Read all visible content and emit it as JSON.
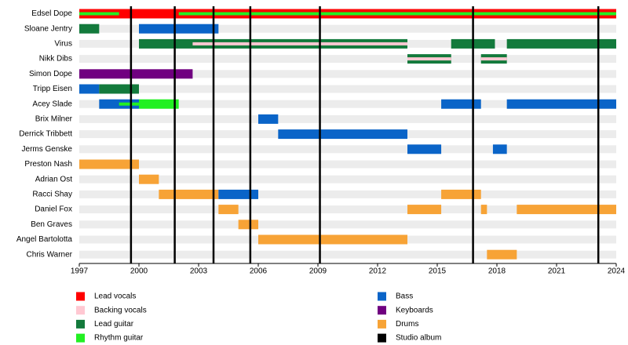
{
  "chart_data": {
    "type": "timeline",
    "xlim": [
      1997,
      2024
    ],
    "xticks": [
      1997,
      2000,
      2003,
      2006,
      2009,
      2012,
      2015,
      2018,
      2021,
      2024
    ],
    "roles": [
      {
        "name": "Lead vocals",
        "color": "#ff0000"
      },
      {
        "name": "Backing vocals",
        "color": "#ffc8d2"
      },
      {
        "name": "Lead guitar",
        "color": "#137a3c"
      },
      {
        "name": "Rhythm guitar",
        "color": "#22f022"
      },
      {
        "name": "Bass",
        "color": "#0a64c8"
      },
      {
        "name": "Keyboards",
        "color": "#700080"
      },
      {
        "name": "Drums",
        "color": "#f7a336"
      }
    ],
    "album_label": "Studio album",
    "album_color": "#000000",
    "studio_albums": [
      1999.6,
      2001.8,
      2003.75,
      2005.6,
      2009.1,
      2016.8,
      2023.1
    ],
    "members": [
      {
        "name": "Edsel Dope",
        "periods": [
          {
            "role": "Lead vocals",
            "start": 1997,
            "end": 2024
          },
          {
            "role": "Rhythm guitar",
            "start": 1997,
            "end": 1999
          },
          {
            "role": "Rhythm guitar",
            "start": 2002,
            "end": 2024
          }
        ]
      },
      {
        "name": "Sloane Jentry",
        "periods": [
          {
            "role": "Lead guitar",
            "start": 1997,
            "end": 1998
          },
          {
            "role": "Bass",
            "start": 2000,
            "end": 2004
          }
        ]
      },
      {
        "name": "Virus",
        "periods": [
          {
            "role": "Lead guitar",
            "start": 2000,
            "end": 2013.5
          },
          {
            "role": "Backing vocals",
            "start": 2002.7,
            "end": 2013.5
          },
          {
            "role": "Lead guitar",
            "start": 2015.7,
            "end": 2017.9
          },
          {
            "role": "Lead guitar",
            "start": 2018.5,
            "end": 2024
          }
        ]
      },
      {
        "name": "Nikk Dibs",
        "periods": [
          {
            "role": "Lead guitar",
            "start": 2013.5,
            "end": 2015.7
          },
          {
            "role": "Backing vocals",
            "start": 2013.5,
            "end": 2015.7
          },
          {
            "role": "Lead guitar",
            "start": 2017.2,
            "end": 2018.5
          },
          {
            "role": "Backing vocals",
            "start": 2017.2,
            "end": 2018.5
          }
        ]
      },
      {
        "name": "Simon Dope",
        "periods": [
          {
            "role": "Keyboards",
            "start": 1997,
            "end": 2002.7
          }
        ]
      },
      {
        "name": "Tripp Eisen",
        "periods": [
          {
            "role": "Bass",
            "start": 1997,
            "end": 1998
          },
          {
            "role": "Lead guitar",
            "start": 1998,
            "end": 2000
          }
        ]
      },
      {
        "name": "Acey Slade",
        "periods": [
          {
            "role": "Bass",
            "start": 1998,
            "end": 2000
          },
          {
            "role": "Rhythm guitar",
            "start": 1999,
            "end": 2000
          },
          {
            "role": "Rhythm guitar",
            "start": 2000,
            "end": 2002
          },
          {
            "role": "Bass",
            "start": 2015.2,
            "end": 2017.2
          },
          {
            "role": "Bass",
            "start": 2018.5,
            "end": 2024
          }
        ]
      },
      {
        "name": "Brix Milner",
        "periods": [
          {
            "role": "Bass",
            "start": 2006,
            "end": 2007
          }
        ]
      },
      {
        "name": "Derrick Tribbett",
        "periods": [
          {
            "role": "Bass",
            "start": 2007,
            "end": 2013.5
          }
        ]
      },
      {
        "name": "Jerms Genske",
        "periods": [
          {
            "role": "Bass",
            "start": 2013.5,
            "end": 2015.2
          },
          {
            "role": "Bass",
            "start": 2017.8,
            "end": 2018.5
          }
        ]
      },
      {
        "name": "Preston Nash",
        "periods": [
          {
            "role": "Drums",
            "start": 1997,
            "end": 2000
          }
        ]
      },
      {
        "name": "Adrian Ost",
        "periods": [
          {
            "role": "Drums",
            "start": 2000,
            "end": 2001
          }
        ]
      },
      {
        "name": "Racci Shay",
        "periods": [
          {
            "role": "Drums",
            "start": 2001,
            "end": 2004
          },
          {
            "role": "Bass",
            "start": 2004,
            "end": 2006
          },
          {
            "role": "Drums",
            "start": 2015.2,
            "end": 2017.2
          }
        ]
      },
      {
        "name": "Daniel Fox",
        "periods": [
          {
            "role": "Drums",
            "start": 2004,
            "end": 2005
          },
          {
            "role": "Drums",
            "start": 2013.5,
            "end": 2015.2
          },
          {
            "role": "Drums",
            "start": 2017.2,
            "end": 2017.5
          },
          {
            "role": "Drums",
            "start": 2019,
            "end": 2024
          }
        ]
      },
      {
        "name": "Ben Graves",
        "periods": [
          {
            "role": "Drums",
            "start": 2005,
            "end": 2006
          }
        ]
      },
      {
        "name": "Angel Bartolotta",
        "periods": [
          {
            "role": "Drums",
            "start": 2006,
            "end": 2013.5
          }
        ]
      },
      {
        "name": "Chris Warner",
        "periods": [
          {
            "role": "Drums",
            "start": 2017.5,
            "end": 2019
          }
        ]
      }
    ]
  }
}
